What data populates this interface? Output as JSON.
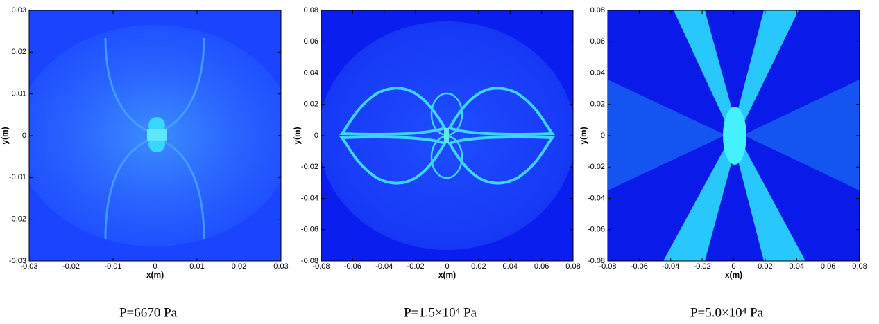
{
  "chart_data": [
    {
      "type": "image",
      "xlabel": "x(m)",
      "ylabel": "y(m)",
      "xlim": [
        -0.03,
        0.03
      ],
      "ylim": [
        -0.03,
        0.03
      ],
      "xticks": [
        -0.03,
        -0.02,
        -0.01,
        0,
        0.01,
        0.02,
        0.03
      ],
      "yticks": [
        -0.03,
        -0.02,
        -0.01,
        0,
        0.01,
        0.02,
        0.03
      ],
      "caption": "P=6670 Pa"
    },
    {
      "type": "image",
      "xlabel": "x(m)",
      "ylabel": "y(m)",
      "xlim": [
        -0.08,
        0.08
      ],
      "ylim": [
        -0.08,
        0.08
      ],
      "xticks": [
        -0.08,
        -0.06,
        -0.04,
        -0.02,
        0,
        0.02,
        0.04,
        0.06,
        0.08
      ],
      "yticks": [
        -0.08,
        -0.06,
        -0.04,
        -0.02,
        0,
        0.02,
        0.04,
        0.06,
        0.08
      ],
      "caption": "P=1.5×10⁴ Pa"
    },
    {
      "type": "image",
      "xlabel": "x(m)",
      "ylabel": "y(m)",
      "xlim": [
        -0.08,
        0.08
      ],
      "ylim": [
        -0.08,
        0.08
      ],
      "xticks": [
        -0.08,
        -0.06,
        -0.04,
        -0.02,
        0,
        0.02,
        0.04,
        0.06,
        0.08
      ],
      "yticks": [
        -0.08,
        -0.06,
        -0.04,
        -0.02,
        0,
        0.02,
        0.04,
        0.06,
        0.08
      ],
      "caption": "P=5.0×10⁴ Pa"
    }
  ]
}
